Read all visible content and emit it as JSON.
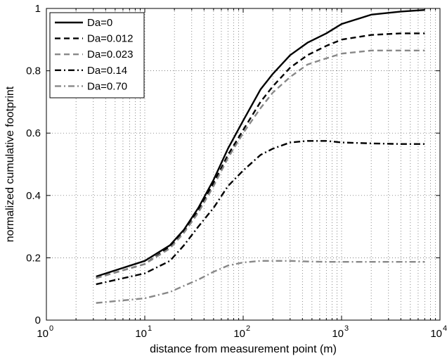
{
  "chart_data": {
    "type": "line",
    "xlabel": "distance from measurement point (m)",
    "ylabel": "normalized cumulative footprint",
    "xscale": "log",
    "xlim": [
      1,
      10000
    ],
    "ylim": [
      0,
      1
    ],
    "x_ticks": [
      {
        "base": "10",
        "exp": "0",
        "value": 1
      },
      {
        "base": "10",
        "exp": "1",
        "value": 10
      },
      {
        "base": "10",
        "exp": "2",
        "value": 100
      },
      {
        "base": "10",
        "exp": "3",
        "value": 1000
      },
      {
        "base": "10",
        "exp": "4",
        "value": 10000
      }
    ],
    "y_ticks": [
      {
        "label": "0",
        "value": 0
      },
      {
        "label": "0.2",
        "value": 0.2
      },
      {
        "label": "0.4",
        "value": 0.4
      },
      {
        "label": "0.6",
        "value": 0.6
      },
      {
        "label": "0.8",
        "value": 0.8
      },
      {
        "label": "1",
        "value": 1
      }
    ],
    "grid": true,
    "legend_position": "top-left",
    "x": [
      3.2,
      10,
      18,
      25,
      35,
      50,
      70,
      100,
      150,
      200,
      300,
      450,
      700,
      1000,
      2000,
      4000,
      7000
    ],
    "series": [
      {
        "name": "Da=0",
        "color": "#000000",
        "dash": "solid",
        "values": [
          0.14,
          0.19,
          0.24,
          0.29,
          0.36,
          0.45,
          0.55,
          0.64,
          0.74,
          0.79,
          0.85,
          0.89,
          0.92,
          0.95,
          0.98,
          0.99,
          0.995
        ]
      },
      {
        "name": "Da=0.012",
        "color": "#000000",
        "dash": "dashed",
        "values": [
          0.135,
          0.18,
          0.235,
          0.285,
          0.35,
          0.44,
          0.53,
          0.61,
          0.7,
          0.75,
          0.81,
          0.85,
          0.88,
          0.9,
          0.915,
          0.92,
          0.92
        ]
      },
      {
        "name": "Da=0.023",
        "color": "#888888",
        "dash": "dashed",
        "values": [
          0.135,
          0.18,
          0.23,
          0.28,
          0.345,
          0.43,
          0.52,
          0.6,
          0.68,
          0.73,
          0.78,
          0.82,
          0.84,
          0.855,
          0.865,
          0.865,
          0.865
        ]
      },
      {
        "name": "Da=0.14",
        "color": "#000000",
        "dash": "dashdot",
        "values": [
          0.115,
          0.15,
          0.19,
          0.24,
          0.3,
          0.36,
          0.43,
          0.48,
          0.53,
          0.55,
          0.57,
          0.575,
          0.575,
          0.57,
          0.567,
          0.565,
          0.565
        ]
      },
      {
        "name": "Da=0.70",
        "color": "#888888",
        "dash": "dashdot",
        "values": [
          0.055,
          0.07,
          0.09,
          0.11,
          0.13,
          0.155,
          0.175,
          0.185,
          0.19,
          0.19,
          0.19,
          0.188,
          0.187,
          0.187,
          0.187,
          0.187,
          0.187
        ]
      }
    ]
  }
}
